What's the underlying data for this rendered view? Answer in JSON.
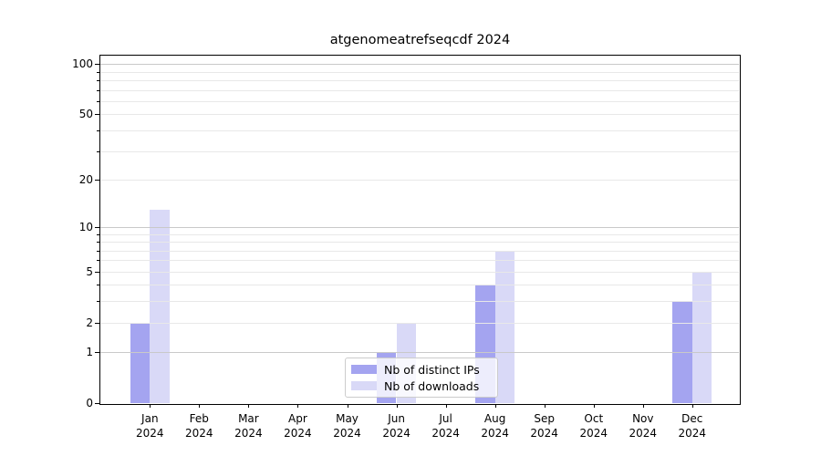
{
  "title": "atgenomeatrefseqcdf 2024",
  "chart_data": {
    "type": "bar",
    "title": "atgenomeatrefseqcdf 2024",
    "categories": [
      "Jan 2024",
      "Feb 2024",
      "Mar 2024",
      "Apr 2024",
      "May 2024",
      "Jun 2024",
      "Jul 2024",
      "Aug 2024",
      "Sep 2024",
      "Oct 2024",
      "Nov 2024",
      "Dec 2024"
    ],
    "months": [
      "Jan",
      "Feb",
      "Mar",
      "Apr",
      "May",
      "Jun",
      "Jul",
      "Aug",
      "Sep",
      "Oct",
      "Nov",
      "Dec"
    ],
    "year": "2024",
    "series": [
      {
        "name": "Nb of distinct IPs",
        "color": "#a4a4f0",
        "values": [
          2,
          0,
          0,
          0,
          0,
          1,
          0,
          4,
          0,
          0,
          0,
          3
        ]
      },
      {
        "name": "Nb of downloads",
        "color": "#d9d9f7",
        "values": [
          13,
          0,
          0,
          0,
          0,
          2,
          0,
          7,
          0,
          0,
          0,
          5
        ]
      }
    ],
    "scale": "log10(1+y)",
    "ylim": [
      0,
      113
    ],
    "yticks_labeled": [
      0,
      1,
      2,
      5,
      10,
      20,
      50,
      100
    ],
    "yticks_minor": [
      3,
      4,
      6,
      7,
      8,
      9,
      30,
      40,
      60,
      70,
      80,
      90
    ],
    "grid": true,
    "legend_position": "lower center"
  },
  "style": {
    "grid_major_color": "#c9c9c9",
    "grid_minor_color": "#e8e8e8",
    "axis_color": "#000000",
    "legend_border_color": "#cccccc",
    "background": "#ffffff",
    "grid_major_values": [
      1,
      10,
      100
    ]
  }
}
